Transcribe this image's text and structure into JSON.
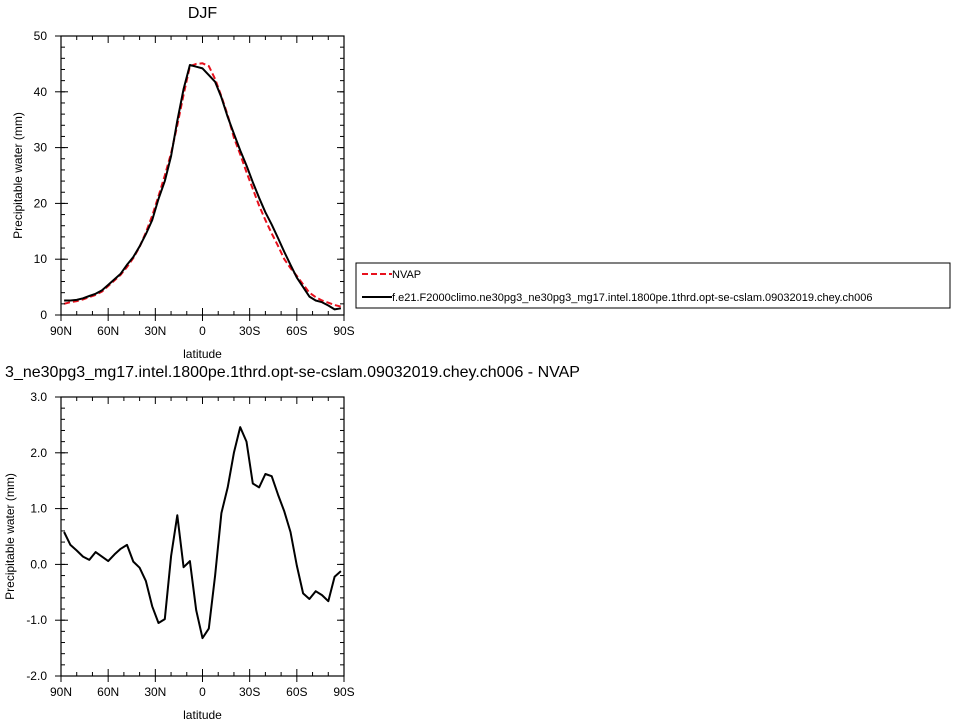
{
  "chart_data": [
    {
      "type": "line",
      "title": "DJF",
      "xlabel": "latitude",
      "ylabel": "Precipitable water (mm)",
      "xlim": [
        90,
        -90
      ],
      "ylim": [
        0,
        50
      ],
      "xticks": [
        90,
        60,
        30,
        0,
        -30,
        -60,
        -90
      ],
      "xtick_labels": [
        "90N",
        "60N",
        "30N",
        "0",
        "30S",
        "60S",
        "90S"
      ],
      "yticks": [
        0,
        10,
        20,
        30,
        40,
        50
      ],
      "ytick_labels": [
        "0",
        "10",
        "20",
        "30",
        "40",
        "50"
      ],
      "series": [
        {
          "name": "NVAP",
          "color": "#e8111d",
          "dash": "dashed",
          "x": [
            88,
            84,
            80,
            76,
            72,
            68,
            64,
            60,
            56,
            52,
            48,
            44,
            40,
            36,
            32,
            28,
            24,
            20,
            16,
            12,
            8,
            4,
            0,
            -4,
            -8,
            -12,
            -16,
            -20,
            -24,
            -28,
            -32,
            -36,
            -40,
            -44,
            -48,
            -52,
            -56,
            -60,
            -64,
            -68,
            -72,
            -76,
            -80,
            -84,
            -88
          ],
          "y": [
            2.0,
            2.3,
            2.5,
            2.8,
            3.2,
            3.6,
            4.2,
            5.2,
            6.2,
            7.2,
            8.6,
            10.2,
            12.2,
            14.8,
            17.8,
            21.3,
            25.0,
            29.0,
            34.0,
            39.5,
            44.6,
            45.0,
            45.1,
            44.6,
            42.3,
            39.2,
            35.8,
            31.8,
            28.8,
            25.6,
            22.6,
            19.6,
            17.0,
            14.6,
            12.4,
            10.0,
            8.4,
            7.0,
            5.5,
            4.0,
            3.2,
            2.6,
            2.2,
            1.8,
            1.5
          ]
        },
        {
          "name": "f.e21.F2000climo.ne30pg3_ne30pg3_mg17.intel.1800pe.1thrd.opt-se-cslam.09032019.chey.ch006",
          "color": "#000000",
          "dash": "solid",
          "x": [
            88,
            84,
            80,
            76,
            72,
            68,
            64,
            60,
            56,
            52,
            48,
            44,
            40,
            36,
            32,
            28,
            24,
            20,
            16,
            12,
            8,
            4,
            0,
            -4,
            -8,
            -12,
            -16,
            -20,
            -24,
            -28,
            -32,
            -36,
            -40,
            -44,
            -48,
            -52,
            -56,
            -60,
            -64,
            -68,
            -72,
            -76,
            -80,
            -84,
            -88
          ],
          "y": [
            2.6,
            2.6,
            2.7,
            3.0,
            3.4,
            3.8,
            4.4,
            5.4,
            6.4,
            7.4,
            9.0,
            10.4,
            12.3,
            14.5,
            17.0,
            20.8,
            24.0,
            28.5,
            34.8,
            40.5,
            44.8,
            44.5,
            44.2,
            43.0,
            41.8,
            39.0,
            35.5,
            32.5,
            29.5,
            26.8,
            23.8,
            21.0,
            18.4,
            16.2,
            13.8,
            11.3,
            9.0,
            6.7,
            5.0,
            3.3,
            2.6,
            2.3,
            1.7,
            1.0,
            1.2
          ]
        }
      ],
      "legend": {
        "placement": "right",
        "entries": [
          "NVAP",
          "f.e21.F2000climo.ne30pg3_ne30pg3_mg17.intel.1800pe.1thrd.opt-se-cslam.09032019.chey.ch006"
        ]
      },
      "grid": false
    },
    {
      "type": "line",
      "title": "3_ne30pg3_mg17.intel.1800pe.1thrd.opt-se-cslam.09032019.chey.ch006 - NVAP",
      "xlabel": "latitude",
      "ylabel": "Precipitable water (mm)",
      "xlim": [
        90,
        -90
      ],
      "ylim": [
        -2.0,
        3.0
      ],
      "xticks": [
        90,
        60,
        30,
        0,
        -30,
        -60,
        -90
      ],
      "xtick_labels": [
        "90N",
        "60N",
        "30N",
        "0",
        "30S",
        "60S",
        "90S"
      ],
      "yticks": [
        -2.0,
        -1.0,
        0.0,
        1.0,
        2.0,
        3.0
      ],
      "ytick_labels": [
        "-2.0",
        "-1.0",
        "0.0",
        "1.0",
        "2.0",
        "3.0"
      ],
      "series": [
        {
          "color": "#000000",
          "dash": "solid",
          "x": [
            88,
            84,
            80,
            76,
            72,
            68,
            64,
            60,
            56,
            52,
            48,
            44,
            40,
            36,
            32,
            28,
            24,
            20,
            16,
            12,
            8,
            4,
            0,
            -4,
            -8,
            -12,
            -16,
            -20,
            -24,
            -28,
            -32,
            -36,
            -40,
            -44,
            -48,
            -52,
            -56,
            -60,
            -64,
            -68,
            -72,
            -76,
            -80,
            -84,
            -88
          ],
          "y": [
            0.58,
            0.35,
            0.25,
            0.14,
            0.08,
            0.22,
            0.14,
            0.06,
            0.18,
            0.28,
            0.35,
            0.05,
            -0.06,
            -0.3,
            -0.75,
            -1.05,
            -0.98,
            0.15,
            0.88,
            -0.05,
            0.06,
            -0.82,
            -1.32,
            -1.15,
            -0.2,
            0.92,
            1.38,
            2.0,
            2.46,
            2.2,
            1.45,
            1.38,
            1.62,
            1.58,
            1.25,
            0.95,
            0.58,
            -0.02,
            -0.52,
            -0.62,
            -0.48,
            -0.55,
            -0.66,
            -0.22,
            -0.12
          ]
        }
      ],
      "grid": false
    }
  ]
}
